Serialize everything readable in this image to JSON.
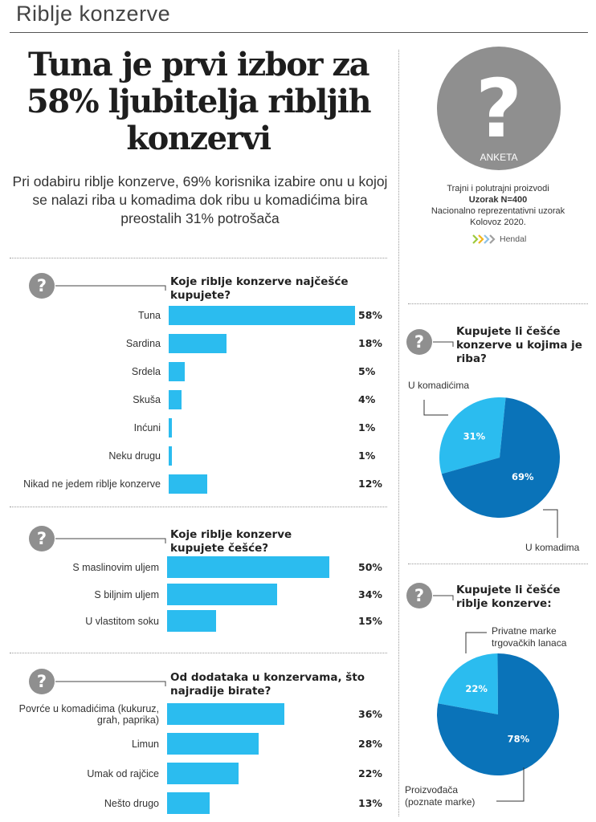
{
  "header": {
    "section_title": "Riblje konzerve"
  },
  "headline": "Tuna je prvi izbor za 58% ljubitelja ribljih konzervi",
  "subheadline": "Pri odabiru riblje konzerve, 69% korisnika izabire onu u kojoj se nalazi riba u komadima dok ribu u komadićima bira preostalih 31% potrošača",
  "badge": {
    "text": "ANKETA",
    "icon": "question-mark-icon"
  },
  "survey_info": {
    "line1": "Trajni i polutrajni proizvodi",
    "line2": "Uzorak N=400",
    "line3": "Nacionalno reprezentativni uzorak",
    "line4": "Kolovoz 2020.",
    "brand": "Hendal"
  },
  "colors": {
    "bar": "#2bbcef",
    "pie_light": "#2bbcef",
    "pie_dark": "#0a73b9",
    "icon_gray": "#8f8f8f"
  },
  "chart_data": [
    {
      "type": "bar",
      "orientation": "horizontal",
      "title": "Koje riblje konzerve najčešće kupujete?",
      "categories": [
        "Tuna",
        "Sardina",
        "Srdela",
        "Skuša",
        "Inćuni",
        "Neku drugu",
        "Nikad ne jedem riblje konzerve"
      ],
      "values": [
        58,
        18,
        5,
        4,
        1,
        1,
        12
      ],
      "value_labels": [
        "58%",
        "18%",
        "5%",
        "4%",
        "1%",
        "1%",
        "12%"
      ],
      "unit": "%"
    },
    {
      "type": "bar",
      "orientation": "horizontal",
      "title": "Koje riblje konzerve kupujete češće?",
      "categories": [
        "S maslinovim uljem",
        "S biljnim uljem",
        "U vlastitom soku"
      ],
      "values": [
        50,
        34,
        15
      ],
      "value_labels": [
        "50%",
        "34%",
        "15%"
      ],
      "unit": "%"
    },
    {
      "type": "bar",
      "orientation": "horizontal",
      "title": "Od dodataka u konzervama, što najradije birate?",
      "categories": [
        "Povrće u komadićima (kukuruz, grah, paprika)",
        "Limun",
        "Umak od rajčice",
        "Nešto drugo"
      ],
      "values": [
        36,
        28,
        22,
        13
      ],
      "value_labels": [
        "36%",
        "28%",
        "22%",
        "13%"
      ],
      "unit": "%"
    },
    {
      "type": "pie",
      "title": "Kupujete li češće konzerve u kojima je riba?",
      "slices": [
        {
          "label": "U komadićima",
          "value": 31,
          "value_label": "31%",
          "color": "#2bbcef"
        },
        {
          "label": "U komadima",
          "value": 69,
          "value_label": "69%",
          "color": "#0a73b9"
        }
      ]
    },
    {
      "type": "pie",
      "title": "Kupujete li češće riblje konzerve:",
      "slices": [
        {
          "label": "Privatne marke trgovačkih lanaca",
          "value": 22,
          "value_label": "22%",
          "color": "#2bbcef"
        },
        {
          "label": "Proizvođača (poznate marke)",
          "value": 78,
          "value_label": "78%",
          "color": "#0a73b9"
        }
      ]
    }
  ]
}
